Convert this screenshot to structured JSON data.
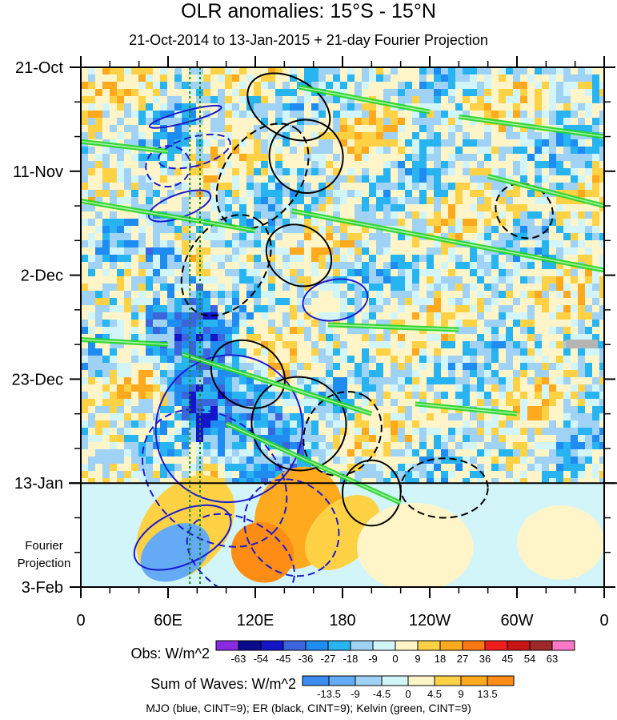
{
  "chart_data": {
    "type": "heatmap",
    "title": "OLR anomalies: 15°S - 15°N",
    "subtitle": "21-Oct-2014 to 13-Jan-2015 + 21-day Fourier Projection",
    "y_tick_labels": [
      "21-Oct",
      "11-Nov",
      "2-Dec",
      "23-Dec",
      "13-Jan",
      "3-Feb"
    ],
    "x_tick_labels": [
      "0",
      "60E",
      "120E",
      "180",
      "120W",
      "60W",
      "0"
    ],
    "x_range_deg_east": [
      0,
      360
    ],
    "y_range_days": [
      0,
      105
    ],
    "observation_end_day": 84,
    "projection_label": "Fourier\nProjection",
    "obs_colorbar": {
      "label": "Obs: W/m^2",
      "levels": [
        "-63",
        "-54",
        "-45",
        "-36",
        "-27",
        "-18",
        "-9",
        "0",
        "9",
        "18",
        "27",
        "36",
        "45",
        "54",
        "63"
      ],
      "colors": [
        "#8a2be2",
        "#0a0a8c",
        "#1414c8",
        "#3c64dc",
        "#1e8cf0",
        "#28b4f0",
        "#a0d2f5",
        "#d2f5fa",
        "#fff5c8",
        "#ffd246",
        "#ffaa1e",
        "#ff7814",
        "#f01e1e",
        "#c81414",
        "#a02828",
        "#ff78c8"
      ]
    },
    "waves_colorbar": {
      "label": "Sum of Waves: W/m^2",
      "levels": [
        "-13.5",
        "-9",
        "-4.5",
        "0",
        "4.5",
        "9",
        "13.5"
      ],
      "colors": [
        "#3c8cf0",
        "#64aaf5",
        "#a0d2f5",
        "#d2f5fa",
        "#fff5c8",
        "#ffd246",
        "#ffaa1e",
        "#ff8c14"
      ]
    },
    "legend_note": "MJO (blue, CINT=9); ER (black, CINT=9); Kelvin (green, CINT=9)",
    "series_colors": {
      "mjo": "#1a1ad0",
      "er": "#000000",
      "kelvin": "#22d622"
    }
  }
}
